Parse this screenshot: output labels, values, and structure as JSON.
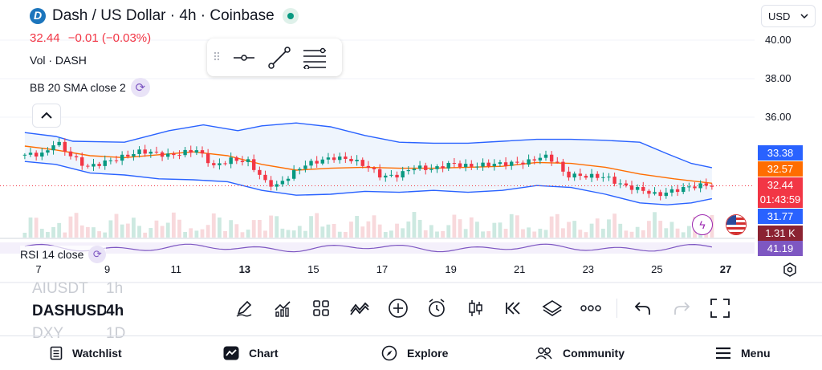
{
  "header": {
    "title": "Dash / US Dollar · 4h · Coinbase",
    "price": "32.44",
    "change": "−0.01 (−0.03%)",
    "volume_label": "Vol · DASH",
    "bb_label": "BB 20 SMA close 2",
    "rsi_label": "RSI 14 close"
  },
  "currency_button": "USD",
  "price_axis": {
    "ticks": [
      {
        "value": 40,
        "label": "40.00"
      },
      {
        "value": 38,
        "label": "38.00"
      },
      {
        "value": 36,
        "label": "36.00"
      }
    ],
    "badges": {
      "bb_upper": "33.38",
      "bb_basis": "32.57",
      "last_price": "32.44",
      "countdown": "01:43:59",
      "bb_lower": "31.77",
      "volume": "1.31 K",
      "rsi": "41.19"
    }
  },
  "time_axis": {
    "labels": [
      {
        "label": "7",
        "bold": false
      },
      {
        "label": "9",
        "bold": false
      },
      {
        "label": "11",
        "bold": false
      },
      {
        "label": "13",
        "bold": true
      },
      {
        "label": "15",
        "bold": false
      },
      {
        "label": "17",
        "bold": false
      },
      {
        "label": "19",
        "bold": false
      },
      {
        "label": "21",
        "bold": false
      },
      {
        "label": "23",
        "bold": false
      },
      {
        "label": "25",
        "bold": false
      },
      {
        "label": "27",
        "bold": true
      }
    ]
  },
  "symbol_list": [
    {
      "symbol": "AIUSDT",
      "interval": "1h",
      "current": false
    },
    {
      "symbol": "DASHUSD",
      "interval": "4h",
      "current": true
    },
    {
      "symbol": "DXY",
      "interval": "1D",
      "current": false
    }
  ],
  "toolbar_icons": [
    "pencil-icon",
    "indicators-icon",
    "layouts-icon",
    "compare-icon",
    "add-icon",
    "alert-icon",
    "candles-icon",
    "replay-icon",
    "layers-icon",
    "more-icon",
    "undo-icon",
    "redo-icon",
    "fullscreen-icon"
  ],
  "bottom_nav": [
    {
      "label": "Watchlist",
      "icon": "watchlist-icon"
    },
    {
      "label": "Chart",
      "icon": "chart-icon"
    },
    {
      "label": "Explore",
      "icon": "compass-icon"
    },
    {
      "label": "Community",
      "icon": "community-icon"
    },
    {
      "label": "Menu",
      "icon": "menu-icon"
    }
  ],
  "colors": {
    "up": "#089981",
    "down": "#f23645",
    "bb_band": "#2962ff",
    "bb_basis": "#ff6d00",
    "bb_fill": "#e8f1fc",
    "rsi_line": "#7e57c2",
    "volume_up": "#cde9e1",
    "volume_down": "#f8d9dc",
    "badge_upper": "#2962ff",
    "badge_basis": "#ff6d00",
    "badge_last": "#f23645",
    "badge_volume": "#8b2332",
    "badge_rsi": "#7e57c2"
  },
  "chart_data": {
    "type": "candlestick",
    "x_range": [
      "7",
      "27"
    ],
    "ylim": [
      31.0,
      40.5
    ],
    "anchor_points": [
      {
        "x": 6.6,
        "y": 34.05
      },
      {
        "x": 7.2,
        "y": 34.1
      },
      {
        "x": 7.5,
        "y": 34.8
      },
      {
        "x": 7.8,
        "y": 34.2
      },
      {
        "x": 8.4,
        "y": 33.4
      },
      {
        "x": 9.2,
        "y": 33.8
      },
      {
        "x": 10.0,
        "y": 34.25
      },
      {
        "x": 10.8,
        "y": 34.0
      },
      {
        "x": 11.6,
        "y": 34.3
      },
      {
        "x": 12.1,
        "y": 33.45
      },
      {
        "x": 12.6,
        "y": 33.8
      },
      {
        "x": 13.1,
        "y": 33.7
      },
      {
        "x": 13.6,
        "y": 32.65
      },
      {
        "x": 13.9,
        "y": 32.4
      },
      {
        "x": 14.3,
        "y": 32.95
      },
      {
        "x": 14.7,
        "y": 33.5
      },
      {
        "x": 15.2,
        "y": 33.75
      },
      {
        "x": 15.6,
        "y": 33.9
      },
      {
        "x": 16.1,
        "y": 33.8
      },
      {
        "x": 16.6,
        "y": 33.4
      },
      {
        "x": 17.0,
        "y": 32.9
      },
      {
        "x": 17.5,
        "y": 33.0
      },
      {
        "x": 17.9,
        "y": 33.4
      },
      {
        "x": 18.5,
        "y": 33.3
      },
      {
        "x": 19.0,
        "y": 33.6
      },
      {
        "x": 19.5,
        "y": 33.45
      },
      {
        "x": 20.1,
        "y": 33.55
      },
      {
        "x": 20.7,
        "y": 33.6
      },
      {
        "x": 21.2,
        "y": 33.65
      },
      {
        "x": 21.7,
        "y": 34.0
      },
      {
        "x": 22.1,
        "y": 33.65
      },
      {
        "x": 22.3,
        "y": 33.0
      },
      {
        "x": 22.9,
        "y": 32.95
      },
      {
        "x": 23.5,
        "y": 32.9
      },
      {
        "x": 24.0,
        "y": 32.45
      },
      {
        "x": 24.6,
        "y": 32.2
      },
      {
        "x": 25.0,
        "y": 31.95
      },
      {
        "x": 25.5,
        "y": 32.2
      },
      {
        "x": 26.0,
        "y": 32.4
      },
      {
        "x": 26.5,
        "y": 32.5
      },
      {
        "x": 26.6,
        "y": 32.44
      }
    ],
    "bb_upper": [
      {
        "x": 6.6,
        "y": 35.2
      },
      {
        "x": 7.5,
        "y": 35.0
      },
      {
        "x": 8.0,
        "y": 34.75
      },
      {
        "x": 9.5,
        "y": 34.7
      },
      {
        "x": 10.8,
        "y": 35.3
      },
      {
        "x": 11.8,
        "y": 35.6
      },
      {
        "x": 12.8,
        "y": 35.3
      },
      {
        "x": 13.5,
        "y": 35.55
      },
      {
        "x": 14.5,
        "y": 35.7
      },
      {
        "x": 15.5,
        "y": 35.5
      },
      {
        "x": 16.5,
        "y": 35.05
      },
      {
        "x": 17.5,
        "y": 34.7
      },
      {
        "x": 18.5,
        "y": 34.65
      },
      {
        "x": 19.5,
        "y": 34.65
      },
      {
        "x": 20.5,
        "y": 34.75
      },
      {
        "x": 21.5,
        "y": 34.85
      },
      {
        "x": 22.5,
        "y": 34.85
      },
      {
        "x": 23.5,
        "y": 34.8
      },
      {
        "x": 24.5,
        "y": 34.7
      },
      {
        "x": 25.3,
        "y": 34.1
      },
      {
        "x": 26.0,
        "y": 33.6
      },
      {
        "x": 26.6,
        "y": 33.38
      }
    ],
    "bb_basis": [
      {
        "x": 6.6,
        "y": 34.5
      },
      {
        "x": 7.5,
        "y": 34.3
      },
      {
        "x": 8.5,
        "y": 34.0
      },
      {
        "x": 9.5,
        "y": 33.9
      },
      {
        "x": 10.5,
        "y": 34.05
      },
      {
        "x": 11.5,
        "y": 34.2
      },
      {
        "x": 12.5,
        "y": 34.0
      },
      {
        "x": 13.5,
        "y": 33.55
      },
      {
        "x": 14.5,
        "y": 33.25
      },
      {
        "x": 15.5,
        "y": 33.35
      },
      {
        "x": 16.5,
        "y": 33.4
      },
      {
        "x": 17.5,
        "y": 33.35
      },
      {
        "x": 18.5,
        "y": 33.35
      },
      {
        "x": 19.5,
        "y": 33.4
      },
      {
        "x": 20.5,
        "y": 33.45
      },
      {
        "x": 21.5,
        "y": 33.65
      },
      {
        "x": 22.5,
        "y": 33.6
      },
      {
        "x": 23.5,
        "y": 33.4
      },
      {
        "x": 24.5,
        "y": 33.05
      },
      {
        "x": 25.5,
        "y": 32.8
      },
      {
        "x": 26.6,
        "y": 32.57
      }
    ],
    "bb_lower": [
      {
        "x": 6.6,
        "y": 33.7
      },
      {
        "x": 7.5,
        "y": 33.55
      },
      {
        "x": 8.5,
        "y": 33.1
      },
      {
        "x": 9.5,
        "y": 33.0
      },
      {
        "x": 10.5,
        "y": 32.8
      },
      {
        "x": 11.5,
        "y": 32.75
      },
      {
        "x": 12.5,
        "y": 32.65
      },
      {
        "x": 13.5,
        "y": 32.2
      },
      {
        "x": 14.5,
        "y": 31.95
      },
      {
        "x": 15.5,
        "y": 32.0
      },
      {
        "x": 16.5,
        "y": 32.15
      },
      {
        "x": 17.5,
        "y": 32.1
      },
      {
        "x": 18.5,
        "y": 32.2
      },
      {
        "x": 19.5,
        "y": 32.1
      },
      {
        "x": 20.5,
        "y": 32.2
      },
      {
        "x": 21.5,
        "y": 32.45
      },
      {
        "x": 22.5,
        "y": 32.35
      },
      {
        "x": 23.5,
        "y": 32.0
      },
      {
        "x": 24.5,
        "y": 31.55
      },
      {
        "x": 25.3,
        "y": 31.45
      },
      {
        "x": 26.0,
        "y": 31.55
      },
      {
        "x": 26.6,
        "y": 31.77
      }
    ],
    "last_price": 32.44,
    "rsi_last": 41.19,
    "volume_last": "1.31 K",
    "grid": true
  }
}
